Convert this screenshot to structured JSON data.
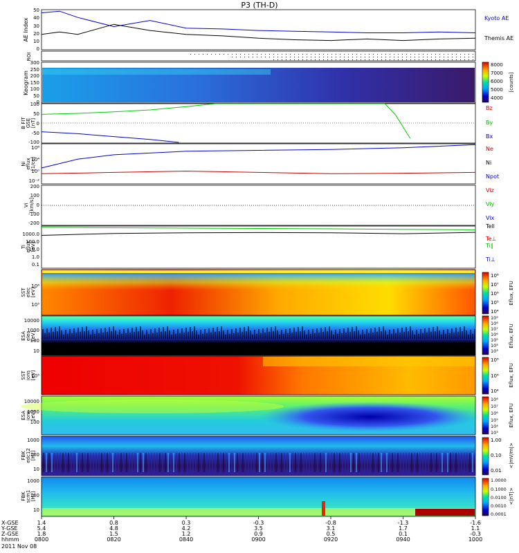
{
  "title": "P3 (TH-D)",
  "colors": {
    "blue": "#0000cc",
    "green": "#00cc00",
    "red": "#cc0000",
    "black": "#000000"
  },
  "panels": {
    "ae": {
      "ylabel": "AE Index",
      "yticks": [
        "50",
        "40",
        "30",
        "20",
        "10",
        "0"
      ],
      "legend": [
        "Kyoto AE",
        "Themis AE"
      ]
    },
    "roi": {
      "ylabel": "ROI"
    },
    "keogram": {
      "ylabel": "Keogram",
      "yticks": [
        "300",
        "250",
        "200",
        "150",
        "100",
        "50",
        "0"
      ],
      "colorbar_ticks": [
        "8000",
        "7000",
        "6000",
        "5000",
        "4000"
      ],
      "colorbar_unit": "[counts]"
    },
    "bfit": {
      "ylabel": [
        "B FIT",
        "GSE",
        "[nT]"
      ],
      "yticks": [
        "100",
        "50",
        "0",
        "-50",
        "-100"
      ],
      "legend": [
        "Bz",
        "By",
        "Bx"
      ]
    },
    "ni": {
      "ylabel": [
        "Ni",
        "eflux",
        "[1/cc]"
      ],
      "yticks": [
        "10⁸",
        "10⁴",
        "10⁰",
        "10⁻²"
      ],
      "legend": [
        "Ne",
        "Ni",
        "Npot"
      ]
    },
    "vi": {
      "ylabel": [
        "Vi",
        "[km/s]"
      ],
      "yticks": [
        "200",
        "100",
        "0",
        "-100",
        "-200"
      ],
      "legend": [
        "Viz",
        "Viy",
        "Vix"
      ]
    },
    "ti": {
      "ylabel": [
        "Ti",
        "eflux",
        "[eV]"
      ],
      "yticks": [
        "1000.0",
        "100.0",
        "10.0",
        "1.0",
        "0.1"
      ],
      "legend": [
        "Tell",
        "Te⊥",
        "Ti∥",
        "Ti⊥"
      ]
    },
    "sst_e": {
      "ylabel": [
        "SST",
        "elec",
        "[eV]"
      ],
      "yticks": [
        "10⁶",
        "10⁵"
      ],
      "colorbar_ticks": [
        "10⁸",
        "10⁷",
        "10⁶",
        "10⁵",
        "10⁴"
      ],
      "colorbar_unit": "Eflux, EFU"
    },
    "esa_e": {
      "ylabel": [
        "ESA",
        "elec",
        "[eV]"
      ],
      "yticks": [
        "10000",
        "1000",
        "100",
        "10"
      ],
      "colorbar_ticks": [
        "10⁹",
        "10⁸",
        "10⁷",
        "10⁶",
        "10⁵",
        "10⁴",
        "10³"
      ],
      "colorbar_unit": "Eflux, EFU"
    },
    "sst_i": {
      "ylabel": [
        "SST",
        "ions",
        "[eV]"
      ],
      "yticks": [
        "10⁵"
      ],
      "colorbar_ticks": [
        "10⁸",
        "10⁶",
        "10⁴"
      ],
      "colorbar_unit": "Eflux, EFU"
    },
    "esa_i": {
      "ylabel": [
        "ESA",
        "ions",
        "[eV]"
      ],
      "yticks": [
        "10000",
        "1000",
        "100"
      ],
      "colorbar_ticks": [
        "10⁸",
        "10⁷",
        "10⁶",
        "10⁵",
        "10⁴",
        "10³"
      ],
      "colorbar_unit": "Eflux, EFU"
    },
    "fbk_e": {
      "ylabel": [
        "FBK",
        "edc12",
        "[Hz]"
      ],
      "yticks": [
        "1000",
        "100",
        "10"
      ],
      "colorbar_ticks": [
        "1.00",
        "0.10",
        "0.01"
      ],
      "colorbar_unit": "<|mV/m|>"
    },
    "fbk_b": {
      "ylabel": [
        "FBK",
        "scm1",
        "[Hz]"
      ],
      "yticks": [
        "1000",
        "100",
        "10"
      ],
      "colorbar_ticks": [
        "1.0000",
        "0.1000",
        "0.0100",
        "0.0010",
        "0.0001"
      ],
      "colorbar_unit": "<|nT|>"
    }
  },
  "xaxis": {
    "row_labels": [
      "X-GSE",
      "Y-GSE",
      "Z-GSE",
      "hhmm",
      "2011 Nov 08"
    ],
    "ticks": [
      {
        "x": "1.4",
        "y": "5.4",
        "z": "1.8",
        "t": "0800"
      },
      {
        "x": "0.8",
        "y": "4.8",
        "z": "1.5",
        "t": "0820"
      },
      {
        "x": "0.3",
        "y": "4.2",
        "z": "1.2",
        "t": "0840"
      },
      {
        "x": "-0.3",
        "y": "3.5",
        "z": "0.9",
        "t": "0900"
      },
      {
        "x": "-0.8",
        "y": "3.1",
        "z": "0.5",
        "t": "0920"
      },
      {
        "x": "-1.3",
        "y": "1.7",
        "z": "0.1",
        "t": "0940"
      },
      {
        "x": "-1.6",
        "y": "1.1",
        "z": "-0.3",
        "t": "1000"
      }
    ]
  },
  "chart_data": {
    "type": "line",
    "title": "P3 (TH-D)",
    "x_time_ticks": [
      "0800",
      "0820",
      "0840",
      "0900",
      "0920",
      "0940",
      "1000"
    ],
    "series": [
      {
        "name": "Kyoto AE",
        "panel": "AE Index",
        "color": "#0000cc",
        "x": [
          "0800",
          "0805",
          "0810",
          "0820",
          "0830",
          "0840",
          "0850",
          "0900",
          "0910",
          "0920",
          "0930",
          "0940",
          "0950",
          "1000"
        ],
        "values": [
          48,
          50,
          42,
          30,
          38,
          28,
          27,
          25,
          24,
          23,
          22,
          22,
          23,
          22
        ]
      },
      {
        "name": "Themis AE",
        "panel": "AE Index",
        "color": "#000000",
        "x": [
          "0800",
          "0805",
          "0810",
          "0820",
          "0830",
          "0840",
          "0850",
          "0900",
          "0910",
          "0920",
          "0930",
          "0940",
          "0950",
          "1000"
        ],
        "values": [
          20,
          23,
          20,
          33,
          25,
          20,
          18,
          15,
          13,
          12,
          14,
          12,
          14,
          15
        ]
      },
      {
        "name": "By",
        "panel": "B FIT",
        "color": "#00cc00",
        "x": [
          "0800",
          "0810",
          "0820",
          "0830",
          "0840",
          "0848",
          "0935",
          "0938",
          "0942"
        ],
        "values": [
          45,
          50,
          58,
          68,
          85,
          100,
          100,
          40,
          -80
        ]
      },
      {
        "name": "Bx",
        "panel": "B FIT",
        "color": "#0000cc",
        "x": [
          "0800",
          "0810",
          "0820",
          "0830",
          "0838"
        ],
        "values": [
          -45,
          -55,
          -70,
          -85,
          -100
        ]
      },
      {
        "name": "Ni",
        "panel": "Ni",
        "color": "#0000cc",
        "x": [
          "0800",
          "0810",
          "0820",
          "0840",
          "0900",
          "0920",
          "0940",
          "1000"
        ],
        "values_log10": [
          1.0,
          3.0,
          4.0,
          4.8,
          5.0,
          5.2,
          5.6,
          6.3
        ]
      },
      {
        "name": "Ne",
        "panel": "Ni",
        "color": "#cc0000",
        "x": [
          "0800",
          "0820",
          "0840",
          "0900",
          "0920",
          "0940",
          "1000"
        ],
        "values_log10": [
          -0.3,
          0.0,
          0.3,
          0.0,
          -0.3,
          -0.2,
          0.0
        ]
      },
      {
        "name": "Tell",
        "panel": "Ti",
        "color": "#00cc00",
        "x": [
          "0800",
          "0820",
          "0840",
          "0900",
          "0920",
          "0940",
          "1000"
        ],
        "values": [
          1500,
          1300,
          1200,
          1100,
          1000,
          900,
          800
        ]
      },
      {
        "name": "Te⊥",
        "panel": "Ti",
        "color": "#000000",
        "x": [
          "0800",
          "0820",
          "0840",
          "0900",
          "0920",
          "0940",
          "1000"
        ],
        "values": [
          200,
          320,
          380,
          400,
          380,
          300,
          420
        ]
      }
    ]
  }
}
